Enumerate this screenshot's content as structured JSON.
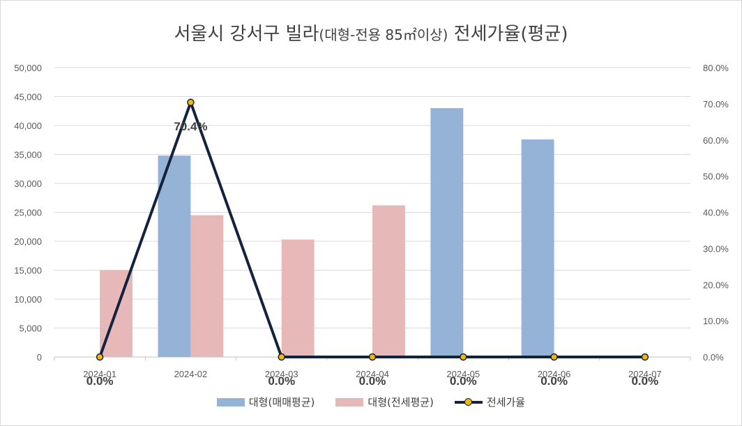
{
  "chart_data": {
    "type": "bar",
    "title": "서울시 강서구 빌라",
    "title_sub": "(대형-전용 85㎡이상)",
    "title_tail": " 전세가율(평균)",
    "categories": [
      "2024-01",
      "2024-02",
      "2024-03",
      "2024-04",
      "2024-05",
      "2024-06",
      "2024-07"
    ],
    "series": [
      {
        "name": "대형(매매평균)",
        "type": "bar",
        "axis": "left",
        "color": "#95b3d7",
        "values": [
          0,
          34800,
          0,
          0,
          43000,
          37600,
          0
        ]
      },
      {
        "name": "대형(전세평균)",
        "type": "bar",
        "axis": "left",
        "color": "#e6b9b8",
        "values": [
          15000,
          24500,
          20300,
          26200,
          0,
          0,
          0
        ]
      },
      {
        "name": "전세가율",
        "type": "line",
        "axis": "right",
        "color": "#13233f",
        "marker_color": "#f5b800",
        "values": [
          0.0,
          70.4,
          0.0,
          0.0,
          0.0,
          0.0,
          0.0
        ],
        "data_labels": [
          "0.0%",
          "70.4%",
          "0.0%",
          "0.0%",
          "0.0%",
          "0.0%",
          "0.0%"
        ]
      }
    ],
    "ylim_left": [
      0,
      50000
    ],
    "yticks_left": [
      "0",
      "5,000",
      "10,000",
      "15,000",
      "20,000",
      "25,000",
      "30,000",
      "35,000",
      "40,000",
      "45,000",
      "50,000"
    ],
    "ylim_right": [
      0,
      80
    ],
    "yticks_right": [
      "0.0%",
      "10.0%",
      "20.0%",
      "30.0%",
      "40.0%",
      "50.0%",
      "60.0%",
      "70.0%",
      "80.0%"
    ],
    "grid": true,
    "legend_position": "bottom"
  }
}
